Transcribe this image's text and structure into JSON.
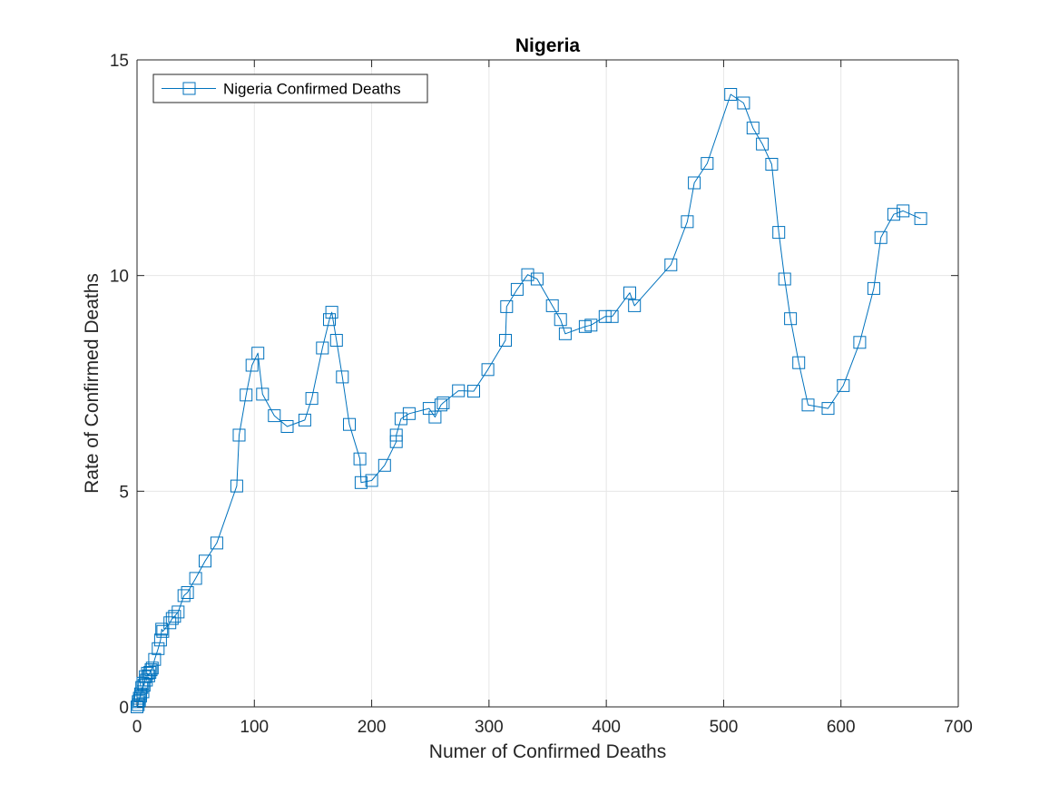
{
  "chart_data": {
    "type": "line",
    "title": "Nigeria",
    "xlabel": "Numer of Confirmed Deaths",
    "ylabel": "Rate of Confirmed Deaths",
    "xlim": [
      0,
      700
    ],
    "ylim": [
      0,
      15
    ],
    "xticks": [
      0,
      100,
      200,
      300,
      400,
      500,
      600,
      700
    ],
    "yticks": [
      0,
      5,
      10,
      15
    ],
    "grid": true,
    "legend_position": "top-left",
    "marker": "square",
    "colors": {
      "series": "#0072bd",
      "grid": "#e6e6e6",
      "axis": "#262626"
    },
    "series": [
      {
        "name": "Nigeria Confirmed Deaths",
        "x": [
          0,
          1,
          1,
          2,
          2,
          3,
          3,
          4,
          5,
          5,
          6,
          7,
          8,
          9,
          10,
          11,
          12,
          13,
          15,
          18,
          20,
          21,
          22,
          28,
          30,
          32,
          35,
          40,
          43,
          50,
          58,
          68,
          85,
          87,
          93,
          98,
          103,
          107,
          117,
          128,
          143,
          149,
          158,
          164,
          166,
          170,
          175,
          181,
          190,
          191,
          200,
          211,
          221,
          221,
          225,
          232,
          249,
          254,
          259,
          261,
          274,
          287,
          299,
          314,
          315,
          324,
          333,
          341,
          354,
          361,
          365,
          382,
          387,
          399,
          405,
          420,
          424,
          455,
          469,
          475,
          486,
          506,
          517,
          525,
          533,
          541,
          547,
          552,
          557,
          564,
          572,
          589,
          602,
          616,
          628,
          634,
          645,
          653,
          668
        ],
        "y": [
          0,
          0.05,
          0.12,
          0.2,
          0.15,
          0.3,
          0.25,
          0.45,
          0.35,
          0.55,
          0.5,
          0.7,
          0.62,
          0.78,
          0.72,
          0.8,
          0.86,
          0.9,
          1.1,
          1.35,
          1.55,
          1.8,
          1.75,
          1.95,
          2.05,
          2.1,
          2.2,
          2.58,
          2.65,
          2.98,
          3.38,
          3.8,
          5.12,
          6.3,
          7.23,
          7.92,
          8.2,
          7.25,
          6.75,
          6.5,
          6.65,
          7.15,
          8.32,
          8.98,
          9.15,
          8.5,
          7.65,
          6.55,
          5.75,
          5.2,
          5.25,
          5.6,
          6.15,
          6.3,
          6.68,
          6.8,
          6.92,
          6.72,
          7.0,
          7.05,
          7.33,
          7.32,
          7.82,
          8.5,
          9.28,
          9.68,
          10.02,
          9.92,
          9.3,
          8.98,
          8.65,
          8.82,
          8.85,
          9.05,
          9.05,
          9.6,
          9.3,
          10.25,
          11.25,
          12.15,
          12.6,
          14.2,
          14.0,
          13.42,
          13.05,
          12.58,
          11.0,
          9.92,
          9.0,
          7.98,
          7.0,
          6.92,
          7.45,
          8.45,
          9.7,
          10.88,
          11.42,
          11.5,
          11.32
        ]
      }
    ]
  }
}
